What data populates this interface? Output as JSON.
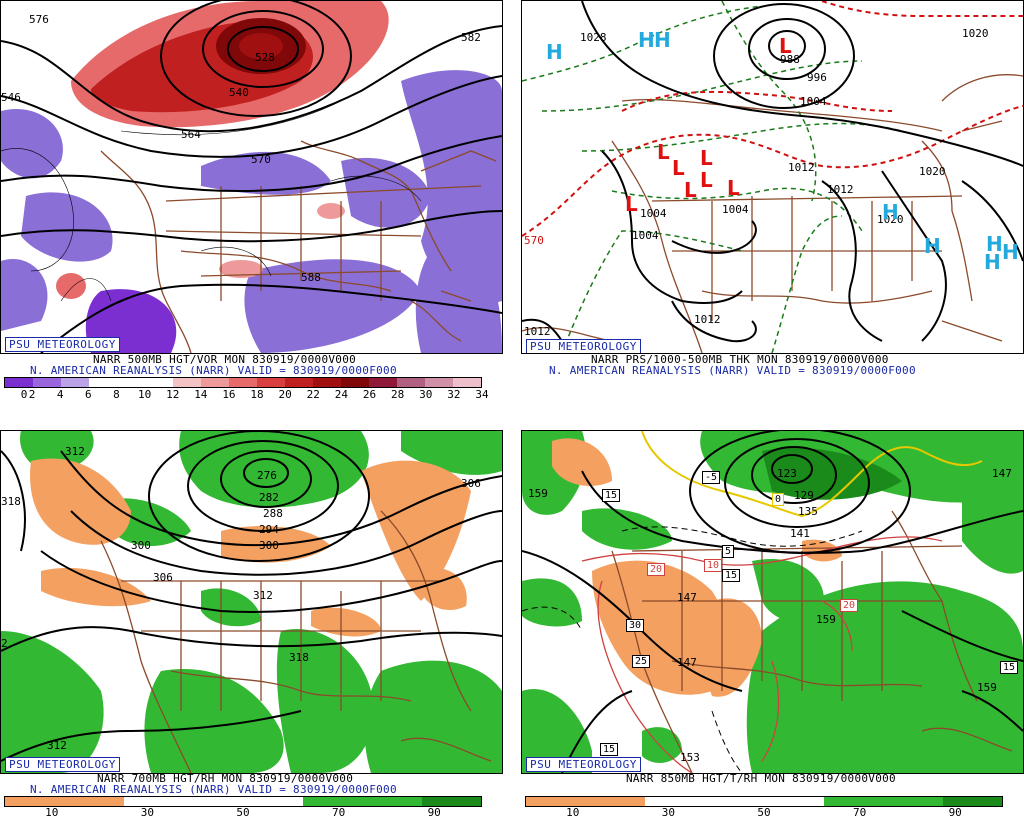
{
  "panels": [
    {
      "id": "p500",
      "badge": "PSU METEOROLOGY",
      "caption_line1": "NARR 500MB HGT/VOR MON 830919/0000V000",
      "caption_line2": "N. AMERICAN REANALYSIS (NARR) VALID = 830919/0000F000",
      "colorbar": {
        "colors": [
          "#7b2fd0",
          "#9966dd",
          "#bba3e8",
          "#ffffff",
          "#ffffff",
          "#ffffff",
          "#f4c4c4",
          "#ee9a9a",
          "#e66a6a",
          "#d84040",
          "#c02020",
          "#a01010",
          "#800808",
          "#901838",
          "#b06080",
          "#d090a8",
          "#eec0cc"
        ],
        "ticks": [
          "0",
          "2",
          "4",
          "6",
          "8",
          "10",
          "12",
          "14",
          "16",
          "18",
          "20",
          "22",
          "24",
          "26",
          "28",
          "30",
          "32",
          "34"
        ]
      },
      "contour_labels": [
        "576",
        "528",
        "540",
        "564",
        "570",
        "582",
        "588",
        "546"
      ]
    },
    {
      "id": "psfc",
      "badge": "PSU METEOROLOGY",
      "caption_line1": "NARR PRS/1000-500MB THK MON 830919/0000V000",
      "caption_line2": "N. AMERICAN REANALYSIS (NARR) VALID = 830919/0000F000",
      "pressure_labels": [
        "1028",
        "988",
        "996",
        "1004",
        "1012",
        "1020",
        "1004",
        "1004",
        "1012",
        "1012",
        "1020",
        "1020",
        "1004",
        "1012"
      ],
      "thickness_labels": [
        "570"
      ],
      "high_marker": "H",
      "low_marker": "L"
    },
    {
      "id": "p700",
      "badge": "PSU METEOROLOGY",
      "caption_line1": "NARR 700MB HGT/RH MON 830919/0000V000",
      "caption_line2": "N. AMERICAN REANALYSIS (NARR) VALID = 830919/0000F000",
      "colorbar": {
        "colors": [
          "#f4a060",
          "#f4a060",
          "#ffffff",
          "#ffffff",
          "#ffffff",
          "#33b833",
          "#33b833",
          "#1a8a1a"
        ],
        "ticks": [
          "10",
          "30",
          "50",
          "70",
          "90"
        ]
      },
      "contour_labels": [
        "312",
        "318",
        "276",
        "282",
        "288",
        "294",
        "300",
        "300",
        "306",
        "306",
        "312",
        "318",
        "2",
        "312"
      ]
    },
    {
      "id": "p850",
      "badge": "PSU METEOROLOGY",
      "caption_line1": "NARR 850MB HGT/T/RH MON 830919/0000V000",
      "colorbar": {
        "colors": [
          "#f4a060",
          "#f4a060",
          "#ffffff",
          "#ffffff",
          "#ffffff",
          "#33b833",
          "#33b833",
          "#1a8a1a"
        ],
        "ticks": [
          "10",
          "30",
          "50",
          "70",
          "90"
        ]
      },
      "height_labels": [
        "159",
        "123",
        "129",
        "135",
        "141",
        "147",
        "147",
        "159",
        "159",
        "153",
        "147"
      ],
      "temp_labels": [
        "15",
        "-5",
        "0",
        "5",
        "10",
        "15",
        "20",
        "20",
        "30",
        "25",
        "15",
        "15"
      ]
    }
  ]
}
